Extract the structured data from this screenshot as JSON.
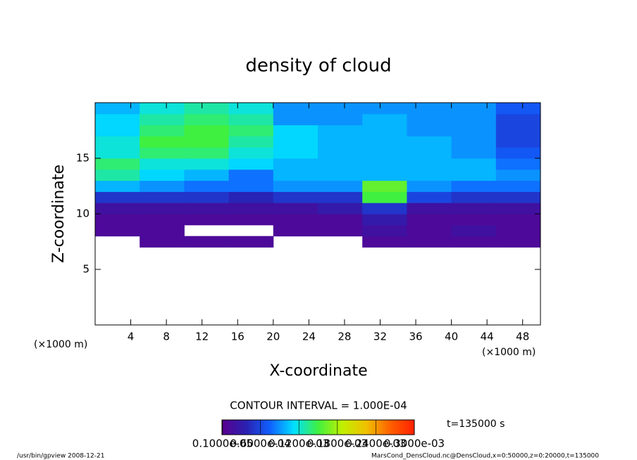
{
  "chart_data": {
    "type": "heatmap",
    "title": "density of cloud",
    "x_label": "X-coordinate",
    "y_label": "Z-coordinate",
    "x_unit": "(×1000 m)",
    "y_unit": "(×1000 m)",
    "x": [
      0,
      5,
      10,
      15,
      20,
      25,
      30,
      35,
      40,
      45,
      50
    ],
    "z": [
      0,
      1,
      2,
      3,
      4,
      5,
      6,
      7,
      8,
      9,
      10,
      11,
      12,
      13,
      14,
      15,
      16,
      17,
      18,
      19,
      20
    ],
    "xlim": [
      0,
      50
    ],
    "ylim": [
      0,
      20
    ],
    "xticks": [
      4,
      8,
      12,
      16,
      20,
      24,
      28,
      32,
      36,
      40,
      44,
      48
    ],
    "yticks": [
      5,
      10,
      15
    ],
    "values": [
      [
        null,
        null,
        null,
        null,
        null,
        null,
        null,
        null,
        null,
        null
      ],
      [
        null,
        null,
        null,
        null,
        null,
        null,
        null,
        null,
        null,
        null
      ],
      [
        null,
        null,
        null,
        null,
        null,
        null,
        null,
        null,
        null,
        null
      ],
      [
        null,
        null,
        null,
        null,
        null,
        null,
        null,
        null,
        null,
        null
      ],
      [
        null,
        null,
        null,
        null,
        null,
        null,
        null,
        null,
        null,
        null
      ],
      [
        null,
        null,
        null,
        null,
        null,
        null,
        null,
        null,
        null,
        null
      ],
      [
        null,
        null,
        null,
        null,
        null,
        null,
        null,
        null,
        null,
        null
      ],
      [
        null,
        1e-05,
        1e-05,
        1e-05,
        null,
        null,
        1e-05,
        1e-05,
        1e-05,
        1e-05
      ],
      [
        1e-05,
        1e-05,
        null,
        null,
        1e-05,
        1e-05,
        2e-05,
        1e-05,
        2e-05,
        1e-05
      ],
      [
        1e-05,
        1e-05,
        1e-05,
        1e-05,
        1e-05,
        1e-05,
        3e-05,
        1e-05,
        1e-05,
        1e-05
      ],
      [
        2e-05,
        2e-05,
        2e-05,
        2e-05,
        2e-05,
        3e-05,
        5e-05,
        2e-05,
        2e-05,
        2e-05
      ],
      [
        5e-05,
        5e-05,
        5e-05,
        4e-05,
        5e-05,
        5e-05,
        0.00015,
        6e-05,
        5e-05,
        5e-05
      ],
      [
        0.0001,
        9e-05,
        8e-05,
        8e-05,
        9e-05,
        9e-05,
        0.00016,
        9e-05,
        8e-05,
        8e-05
      ],
      [
        0.00013,
        0.00011,
        0.0001,
        8e-05,
        0.0001,
        0.0001,
        0.0001,
        0.0001,
        0.0001,
        9e-05
      ],
      [
        0.00014,
        0.00012,
        0.00012,
        0.00011,
        0.0001,
        0.0001,
        0.0001,
        0.0001,
        0.0001,
        8e-05
      ],
      [
        0.00012,
        0.00014,
        0.00014,
        0.00012,
        0.00011,
        0.0001,
        0.0001,
        0.0001,
        9e-05,
        7e-05
      ],
      [
        0.00012,
        0.00015,
        0.00015,
        0.00013,
        0.00011,
        0.0001,
        0.0001,
        0.0001,
        9e-05,
        6e-05
      ],
      [
        0.00011,
        0.00014,
        0.00015,
        0.00014,
        0.00011,
        0.0001,
        0.0001,
        9e-05,
        9e-05,
        6e-05
      ],
      [
        0.00011,
        0.00013,
        0.00014,
        0.00013,
        9e-05,
        9e-05,
        0.0001,
        9e-05,
        9e-05,
        6e-05
      ],
      [
        0.0001,
        0.00012,
        0.00013,
        0.00012,
        9e-05,
        9e-05,
        9e-05,
        9e-05,
        9e-05,
        7e-05
      ]
    ],
    "colors": [
      "#5a0090",
      "#2a20b0",
      "#1060ff",
      "#00e0ff",
      "#40f040",
      "#c0f000",
      "#f0c000",
      "#ff6000",
      "#ff2000"
    ],
    "clim": [
      0,
      0.0003
    ],
    "cticks": [
      {
        "value": 1e-06,
        "label": "0.1000e-05"
      },
      {
        "value": 6e-05,
        "label": "0.6000e-04"
      },
      {
        "value": 0.00012,
        "label": "0.1200e-03"
      },
      {
        "value": 0.00018,
        "label": "0.1800e-03"
      },
      {
        "value": 0.00024,
        "label": "0.2400e-03"
      },
      {
        "value": 0.0003,
        "label": "0.3000e-03"
      }
    ],
    "contour_interval": "CONTOUR INTERVAL = 1.000E-04",
    "time_label": "t=135000 s",
    "footer_left": "/usr/bin/gpview  2008-12-21",
    "footer_right": "MarsCond_DensCloud.nc@DensCloud,x=0:50000,z=0:20000,t=135000"
  }
}
